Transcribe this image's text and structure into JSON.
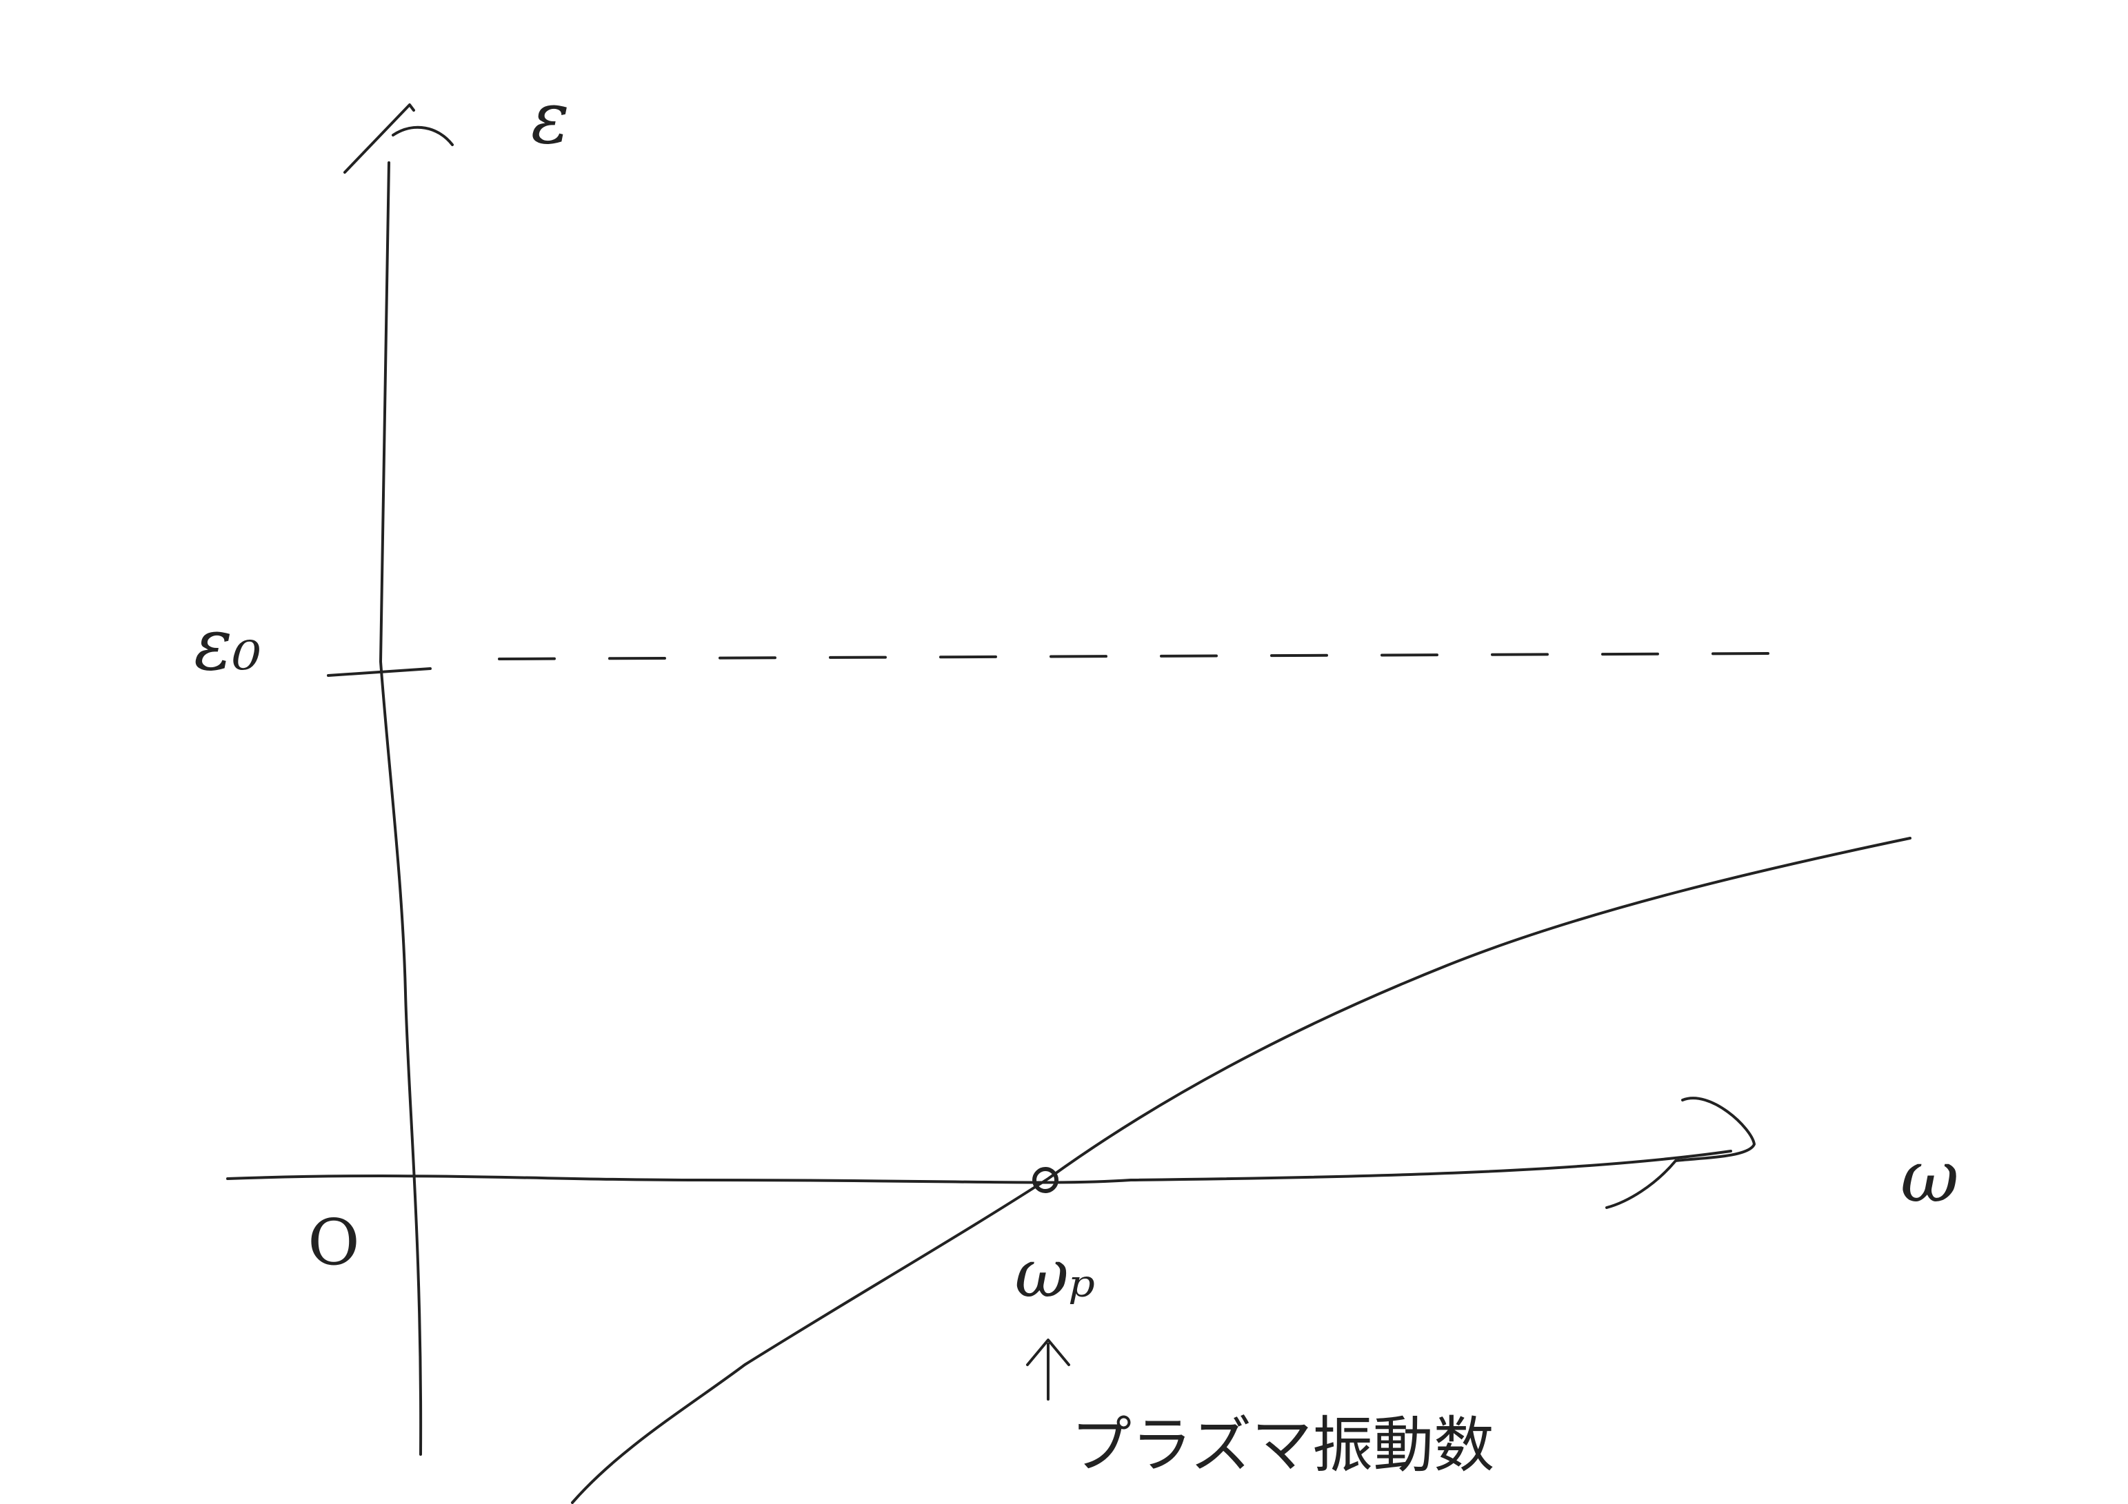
{
  "y_axis": {
    "label": "ε"
  },
  "x_axis": {
    "label": "ω"
  },
  "origin": "O",
  "level": {
    "label": "ε₀"
  },
  "marker": {
    "label": "ωₚ",
    "note": "プラズマ振動数"
  }
}
